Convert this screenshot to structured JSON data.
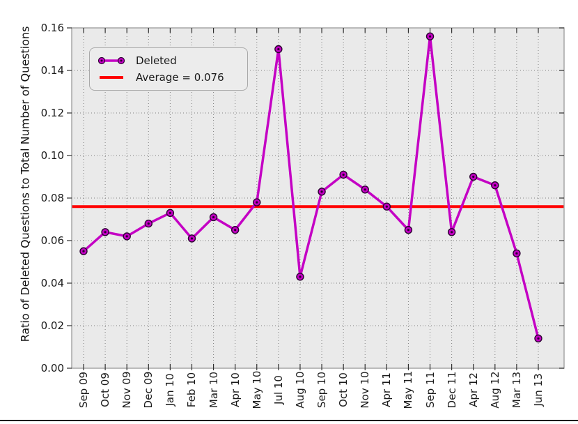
{
  "style": {
    "figure_bg": "#FFFFFF",
    "plot_bg": "#EAEAEA",
    "grid_color": "#808080",
    "spine_color": "#A0A0A0",
    "tick_color": "#2F2F2F",
    "text_color": "#1A1A1A",
    "legend_bg": "#ECECEC",
    "legend_border": "#A9A9A9"
  },
  "chart_data": {
    "type": "line",
    "title": "",
    "xlabel": "",
    "ylabel": "Ratio of Deleted Questions to Total Number of Questions",
    "categories": [
      "Sep 09",
      "Oct 09",
      "Nov 09",
      "Dec 09",
      "Jan 10",
      "Feb 10",
      "Mar 10",
      "Apr 10",
      "May 10",
      "Jul 10",
      "Aug 10",
      "Sep 10",
      "Oct 10",
      "Nov 10",
      "Apr 11",
      "May 11",
      "Sep 11",
      "Dec 11",
      "Apr 12",
      "Aug 12",
      "Mar 13",
      "Jun 13"
    ],
    "series": [
      {
        "name": "Deleted",
        "type": "line",
        "color": "#C400C4",
        "marker": "circle",
        "marker_edge": "#2A0030",
        "values": [
          0.055,
          0.064,
          0.062,
          0.068,
          0.073,
          0.061,
          0.071,
          0.065,
          0.078,
          0.15,
          0.043,
          0.083,
          0.091,
          0.084,
          0.076,
          0.065,
          0.156,
          0.064,
          0.09,
          0.086,
          0.054,
          0.014
        ]
      },
      {
        "name": "Average = 0.076",
        "type": "hline",
        "color": "#FF0000",
        "value": 0.076
      }
    ],
    "ylim": [
      0,
      0.16
    ],
    "yticks": [
      "0.00",
      "0.02",
      "0.04",
      "0.06",
      "0.08",
      "0.10",
      "0.12",
      "0.14",
      "0.16"
    ],
    "grid": "dotted",
    "legend_position": "upper-left"
  }
}
